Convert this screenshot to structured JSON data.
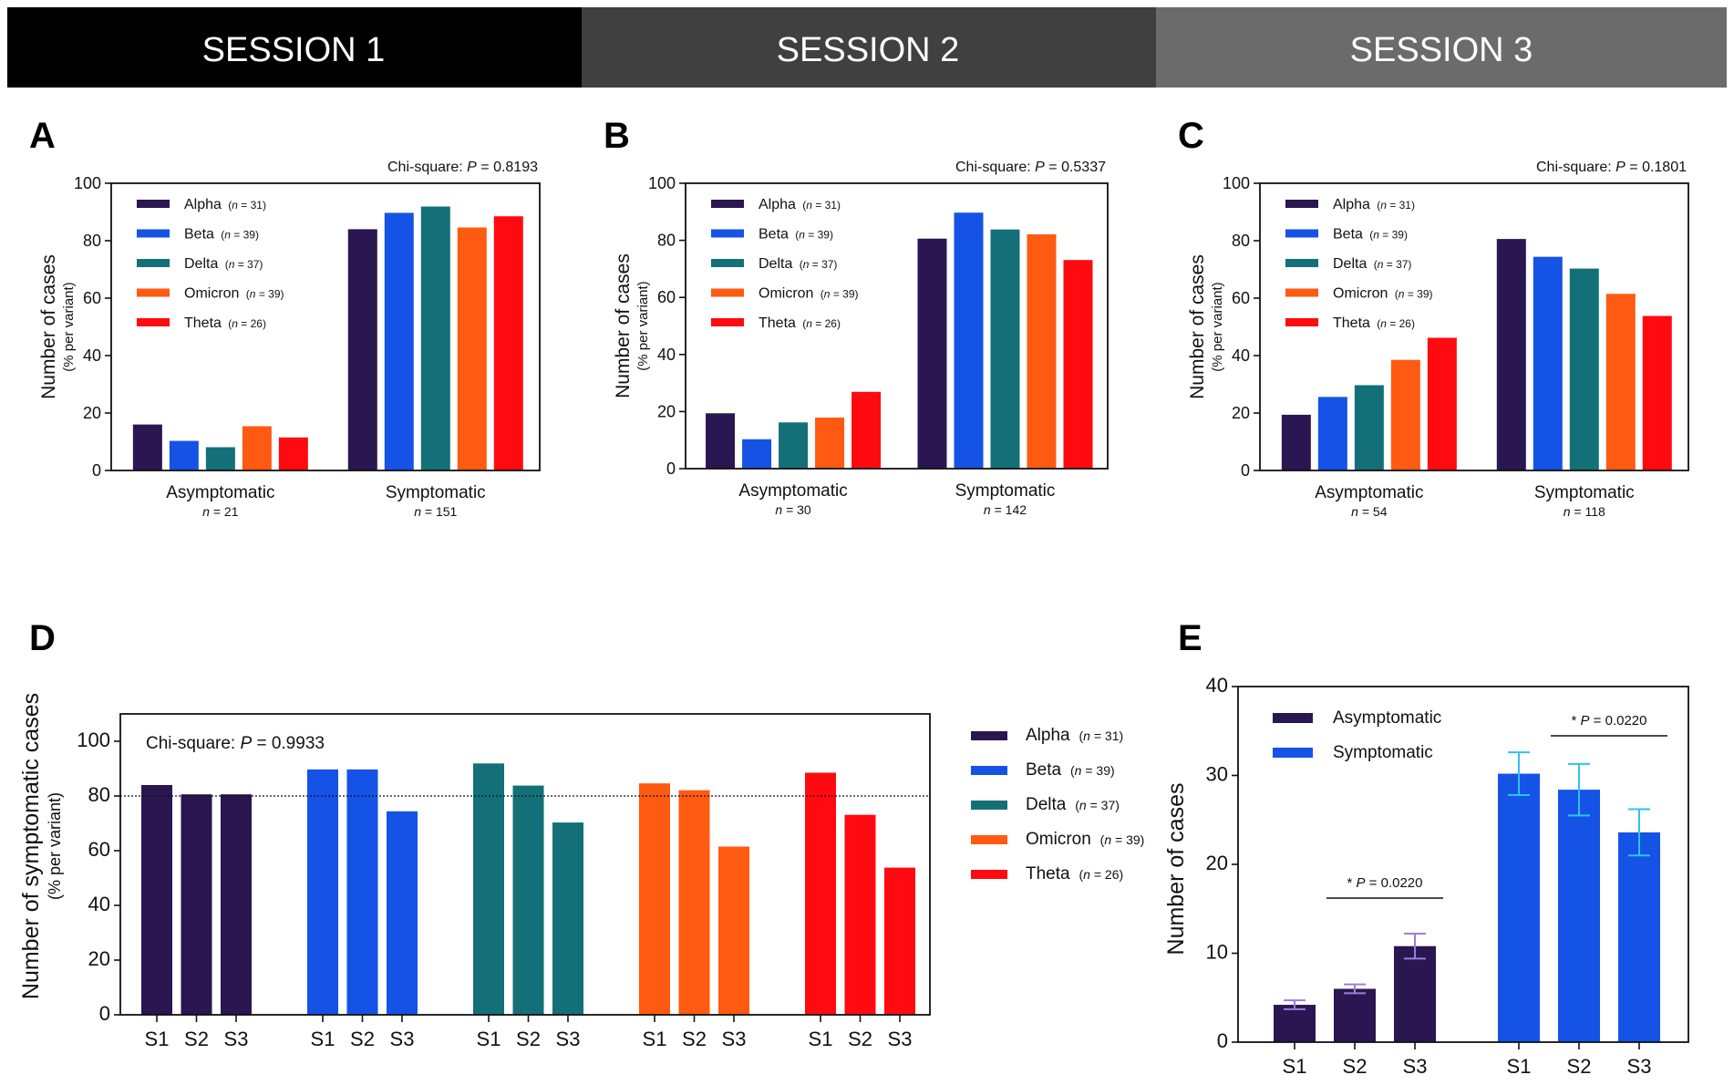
{
  "colors": {
    "header_bg": [
      "#000000",
      "#404040",
      "#6b6b6b"
    ],
    "variants": [
      "#2a1650",
      "#1553e6",
      "#137078",
      "#ff5a12",
      "#ff0a10"
    ],
    "panel_e": [
      "#2a1650",
      "#1553e6"
    ],
    "error_bars": [
      "#9a7fd9",
      "#2ec3f0"
    ]
  },
  "header": {
    "sessions": [
      "SESSION 1",
      "SESSION 2",
      "SESSION 3"
    ]
  },
  "chart_data": [
    {
      "panel": "A",
      "type": "bar",
      "session": "SESSION 1",
      "annotation": {
        "prefix": "Chi-square: ",
        "p_italic": "P",
        "value": " = 0.8193"
      },
      "ylabel": "Number of cases",
      "ylabel_sub": "(% per variant)",
      "ylim": [
        0,
        100
      ],
      "yticks": [
        0,
        20,
        40,
        60,
        80,
        100
      ],
      "categories": [
        {
          "label": "Asymptomatic",
          "n_prefix": "n",
          "n_value": " = 21"
        },
        {
          "label": "Symptomatic",
          "n_prefix": "n",
          "n_value": " = 151"
        }
      ],
      "series": [
        {
          "name": "Alpha",
          "n_prefix": "n",
          "n_value": " = 31",
          "values": [
            16,
            84
          ]
        },
        {
          "name": "Beta",
          "n_prefix": "n",
          "n_value": " = 39",
          "values": [
            10.3,
            89.7
          ]
        },
        {
          "name": "Delta",
          "n_prefix": "n",
          "n_value": " = 37",
          "values": [
            8.1,
            91.9
          ]
        },
        {
          "name": "Omicron",
          "n_prefix": "n",
          "n_value": " = 39",
          "values": [
            15.4,
            84.6
          ]
        },
        {
          "name": "Theta",
          "n_prefix": "n",
          "n_value": " = 26",
          "values": [
            11.5,
            88.5
          ]
        }
      ]
    },
    {
      "panel": "B",
      "type": "bar",
      "session": "SESSION 2",
      "annotation": {
        "prefix": "Chi-square: ",
        "p_italic": "P",
        "value": " = 0.5337"
      },
      "ylabel": "Number of cases",
      "ylabel_sub": "(% per variant)",
      "ylim": [
        0,
        100
      ],
      "yticks": [
        0,
        20,
        40,
        60,
        80,
        100
      ],
      "categories": [
        {
          "label": "Asymptomatic",
          "n_prefix": "n",
          "n_value": " = 30"
        },
        {
          "label": "Symptomatic",
          "n_prefix": "n",
          "n_value": " = 142"
        }
      ],
      "series": [
        {
          "name": "Alpha",
          "n_prefix": "n",
          "n_value": " = 31",
          "values": [
            19.4,
            80.6
          ]
        },
        {
          "name": "Beta",
          "n_prefix": "n",
          "n_value": " = 39",
          "values": [
            10.3,
            89.7
          ]
        },
        {
          "name": "Delta",
          "n_prefix": "n",
          "n_value": " = 37",
          "values": [
            16.2,
            83.8
          ]
        },
        {
          "name": "Omicron",
          "n_prefix": "n",
          "n_value": " = 39",
          "values": [
            17.9,
            82.1
          ]
        },
        {
          "name": "Theta",
          "n_prefix": "n",
          "n_value": " = 26",
          "values": [
            26.9,
            73.1
          ]
        }
      ]
    },
    {
      "panel": "C",
      "type": "bar",
      "session": "SESSION 3",
      "annotation": {
        "prefix": "Chi-square: ",
        "p_italic": "P",
        "value": " = 0.1801"
      },
      "ylabel": "Number of cases",
      "ylabel_sub": "(% per variant)",
      "ylim": [
        0,
        100
      ],
      "yticks": [
        0,
        20,
        40,
        60,
        80,
        100
      ],
      "categories": [
        {
          "label": "Asymptomatic",
          "n_prefix": "n",
          "n_value": " = 54"
        },
        {
          "label": "Symptomatic",
          "n_prefix": "n",
          "n_value": " = 118"
        }
      ],
      "series": [
        {
          "name": "Alpha",
          "n_prefix": "n",
          "n_value": " = 31",
          "values": [
            19.4,
            80.6
          ]
        },
        {
          "name": "Beta",
          "n_prefix": "n",
          "n_value": " = 39",
          "values": [
            25.6,
            74.4
          ]
        },
        {
          "name": "Delta",
          "n_prefix": "n",
          "n_value": " = 37",
          "values": [
            29.7,
            70.3
          ]
        },
        {
          "name": "Omicron",
          "n_prefix": "n",
          "n_value": " = 39",
          "values": [
            38.5,
            61.5
          ]
        },
        {
          "name": "Theta",
          "n_prefix": "n",
          "n_value": " = 26",
          "values": [
            46.2,
            53.8
          ]
        }
      ]
    },
    {
      "panel": "D",
      "type": "bar",
      "annotation": {
        "prefix": "Chi-square: ",
        "p_italic": "P",
        "value": " = 0.9933"
      },
      "ylabel": "Number of symptomatic cases",
      "ylabel_sub": "(% per variant)",
      "ylim": [
        0,
        110
      ],
      "yticks": [
        0,
        20,
        40,
        60,
        80,
        100
      ],
      "reference_line": 80,
      "sessions": [
        "S1",
        "S2",
        "S3"
      ],
      "series": [
        {
          "name": "Alpha",
          "n_prefix": "n",
          "n_value": " = 31",
          "values": [
            84,
            80.6,
            80.6
          ]
        },
        {
          "name": "Beta",
          "n_prefix": "n",
          "n_value": " = 39",
          "values": [
            89.7,
            89.7,
            74.4
          ]
        },
        {
          "name": "Delta",
          "n_prefix": "n",
          "n_value": " = 37",
          "values": [
            91.9,
            83.8,
            70.3
          ]
        },
        {
          "name": "Omicron",
          "n_prefix": "n",
          "n_value": " = 39",
          "values": [
            84.6,
            82.1,
            61.5
          ]
        },
        {
          "name": "Theta",
          "n_prefix": "n",
          "n_value": " = 26",
          "values": [
            88.5,
            73.1,
            53.8
          ]
        }
      ]
    },
    {
      "panel": "E",
      "type": "bar",
      "ylabel": "Number of cases",
      "ylim": [
        0,
        40
      ],
      "yticks": [
        0,
        10,
        20,
        30,
        40
      ],
      "sessions": [
        "S1",
        "S2",
        "S3"
      ],
      "series": [
        {
          "name": "Asymptomatic",
          "values": [
            4.2,
            6.0,
            10.8
          ],
          "errors": [
            0.5,
            0.5,
            1.4
          ]
        },
        {
          "name": "Symptomatic",
          "values": [
            30.2,
            28.4,
            23.6
          ],
          "errors": [
            2.4,
            2.9,
            2.6
          ]
        }
      ],
      "significance": [
        {
          "group": "Asymptomatic",
          "from": "S2",
          "to": "S3",
          "star": "*",
          "p_italic": "P",
          "value": " = 0.0220"
        },
        {
          "group": "Symptomatic",
          "from": "S2",
          "to": "S3",
          "star": "*",
          "p_italic": "P",
          "value": " = 0.0220"
        }
      ]
    }
  ]
}
